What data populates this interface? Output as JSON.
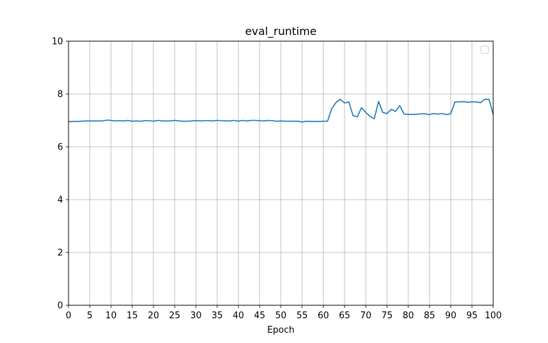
{
  "chart_data": {
    "type": "line",
    "title": "eval_runtime",
    "xlabel": "Epoch",
    "ylabel": "",
    "xlim": [
      0,
      100
    ],
    "ylim": [
      0,
      10
    ],
    "x_ticks": [
      0,
      5,
      10,
      15,
      20,
      25,
      30,
      35,
      40,
      45,
      50,
      55,
      60,
      65,
      70,
      75,
      80,
      85,
      90,
      95,
      100
    ],
    "y_ticks": [
      0,
      2,
      4,
      6,
      8,
      10
    ],
    "grid": true,
    "legend": "top-right",
    "series": [
      {
        "color": "#1f77b4",
        "x": [
          0,
          1,
          2,
          3,
          4,
          5,
          6,
          7,
          8,
          9,
          10,
          11,
          12,
          13,
          14,
          15,
          16,
          17,
          18,
          19,
          20,
          21,
          22,
          23,
          24,
          25,
          26,
          27,
          28,
          29,
          30,
          31,
          32,
          33,
          34,
          35,
          36,
          37,
          38,
          39,
          40,
          41,
          42,
          43,
          44,
          45,
          46,
          47,
          48,
          49,
          50,
          51,
          52,
          53,
          54,
          55,
          56,
          57,
          58,
          59,
          60,
          61,
          62,
          63,
          64,
          65,
          66,
          67,
          68,
          69,
          70,
          71,
          72,
          73,
          74,
          75,
          76,
          77,
          78,
          79,
          80,
          81,
          82,
          83,
          84,
          85,
          86,
          87,
          88,
          89,
          90,
          91,
          92,
          93,
          94,
          95,
          96,
          97,
          98,
          99,
          100
        ],
        "y": [
          6.95,
          6.96,
          6.96,
          6.97,
          6.98,
          6.98,
          6.98,
          6.98,
          6.98,
          7.01,
          7.0,
          6.98,
          6.99,
          6.98,
          7.0,
          6.97,
          6.98,
          6.97,
          6.99,
          6.99,
          6.97,
          7.0,
          6.98,
          6.98,
          6.98,
          7.0,
          6.98,
          6.97,
          6.97,
          6.98,
          6.99,
          6.98,
          6.99,
          6.99,
          6.98,
          7.0,
          6.99,
          6.98,
          6.98,
          7.0,
          6.97,
          7.0,
          6.98,
          7.0,
          7.0,
          6.99,
          6.98,
          7.0,
          6.99,
          6.97,
          6.98,
          6.97,
          6.97,
          6.97,
          6.97,
          6.94,
          6.97,
          6.96,
          6.96,
          6.96,
          6.97,
          6.97,
          7.45,
          7.68,
          7.8,
          7.66,
          7.7,
          7.18,
          7.14,
          7.48,
          7.3,
          7.15,
          7.06,
          7.72,
          7.3,
          7.26,
          7.42,
          7.34,
          7.56,
          7.24,
          7.23,
          7.23,
          7.23,
          7.25,
          7.25,
          7.22,
          7.26,
          7.24,
          7.26,
          7.22,
          7.25,
          7.7,
          7.7,
          7.71,
          7.69,
          7.7,
          7.7,
          7.67,
          7.8,
          7.8,
          7.22
        ]
      }
    ]
  }
}
